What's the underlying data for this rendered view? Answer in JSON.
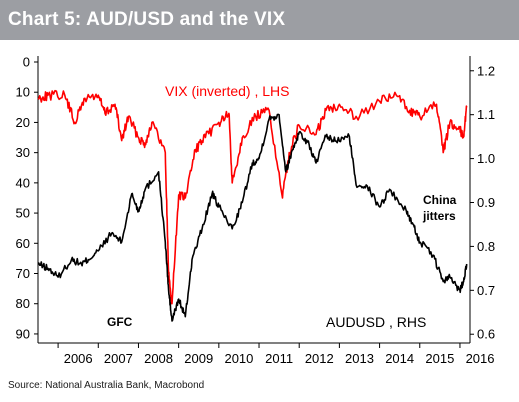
{
  "header": {
    "title": "Chart 5: AUD/USD and the VIX"
  },
  "footer": {
    "source": "Source: National Australia Bank, Macrobond"
  },
  "colors": {
    "header_bg": "#9c9ea3",
    "vix": "#ff0000",
    "audusd": "#000000"
  },
  "chart_data": {
    "type": "line",
    "title": "Chart 5: AUD/USD and the VIX",
    "x_range": [
      "2005-07-01",
      "2016-04-01"
    ],
    "x_tick_labels": [
      "2006",
      "2007",
      "2008",
      "2009",
      "2010",
      "2011",
      "2012",
      "2013",
      "2014",
      "2015",
      "2016"
    ],
    "y_left": {
      "ticks": [
        0,
        10,
        20,
        30,
        40,
        50,
        60,
        70,
        80,
        90
      ],
      "range": [
        0,
        93
      ],
      "inverted": true
    },
    "y_right": {
      "ticks": [
        0.6,
        0.7,
        0.8,
        0.9,
        1.0,
        1.1,
        1.2
      ],
      "range": [
        0.58,
        1.22
      ]
    },
    "grid": false,
    "annotations": [
      "GFC",
      "China jitters"
    ],
    "series": [
      {
        "name": "VIX (inverted) , LHS",
        "axis": "left",
        "color": "#ff0000",
        "x": [
          "2005-07",
          "2005-10",
          "2006-03",
          "2006-06",
          "2006-09",
          "2007-01",
          "2007-03",
          "2007-06",
          "2007-08",
          "2007-10",
          "2008-01",
          "2008-03",
          "2008-05",
          "2008-09",
          "2008-10",
          "2008-11",
          "2009-01",
          "2009-03",
          "2009-06",
          "2009-09",
          "2010-01",
          "2010-04",
          "2010-05",
          "2010-08",
          "2010-12",
          "2011-04",
          "2011-08",
          "2011-10",
          "2012-01",
          "2012-06",
          "2012-09",
          "2013-01",
          "2013-06",
          "2014-01",
          "2014-06",
          "2014-10",
          "2015-01",
          "2015-06",
          "2015-08",
          "2015-10",
          "2016-01",
          "2016-02",
          "2016-03"
        ],
        "values": [
          12,
          11,
          11,
          20,
          12,
          11,
          17,
          14,
          26,
          18,
          25,
          27,
          20,
          30,
          70,
          80,
          44,
          45,
          29,
          25,
          20,
          17,
          40,
          25,
          18,
          16,
          45,
          30,
          21,
          24,
          16,
          14,
          18,
          13,
          11,
          16,
          18,
          14,
          30,
          20,
          22,
          25,
          15
        ]
      },
      {
        "name": "AUDUSD , RHS",
        "axis": "right",
        "color": "#000000",
        "x": [
          "2005-07",
          "2005-10",
          "2006-01",
          "2006-05",
          "2006-08",
          "2006-10",
          "2007-01",
          "2007-05",
          "2007-08",
          "2007-11",
          "2008-01",
          "2008-03",
          "2008-07",
          "2008-09",
          "2008-10",
          "2008-11",
          "2009-01",
          "2009-03",
          "2009-05",
          "2009-08",
          "2009-11",
          "2010-01",
          "2010-05",
          "2010-08",
          "2010-11",
          "2011-01",
          "2011-04",
          "2011-07",
          "2011-09",
          "2011-11",
          "2012-01",
          "2012-04",
          "2012-06",
          "2012-09",
          "2012-12",
          "2013-04",
          "2013-06",
          "2013-09",
          "2014-01",
          "2014-04",
          "2014-09",
          "2014-11",
          "2015-01",
          "2015-05",
          "2015-08",
          "2015-10",
          "2016-01",
          "2016-02",
          "2016-03"
        ],
        "values": [
          0.76,
          0.75,
          0.73,
          0.77,
          0.76,
          0.77,
          0.79,
          0.83,
          0.81,
          0.92,
          0.88,
          0.93,
          0.97,
          0.81,
          0.7,
          0.63,
          0.68,
          0.64,
          0.77,
          0.84,
          0.92,
          0.89,
          0.84,
          0.9,
          0.99,
          1.0,
          1.09,
          1.1,
          0.97,
          1.02,
          1.06,
          1.03,
          0.99,
          1.05,
          1.04,
          1.05,
          0.94,
          0.94,
          0.89,
          0.93,
          0.88,
          0.85,
          0.81,
          0.78,
          0.72,
          0.73,
          0.7,
          0.72,
          0.76
        ]
      }
    ]
  }
}
